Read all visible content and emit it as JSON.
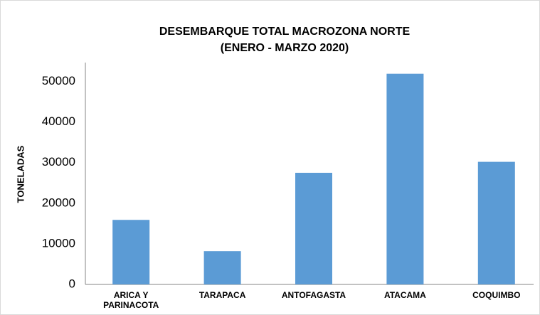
{
  "chart_data": {
    "type": "bar",
    "title": "DESEMBARQUE TOTAL MACROZONA NORTE",
    "subtitle": "(ENERO - MARZO 2020)",
    "y_label": "TONELADAS",
    "categories": [
      "ARICA Y PARINACOTA",
      "TARAPACA",
      "ANTOFAGASTA",
      "ATACAMA",
      "COQUIMBO"
    ],
    "values": [
      15900,
      8200,
      27500,
      51900,
      30200
    ],
    "color": "#5b9bd5",
    "ylim": [
      0,
      55000
    ],
    "yticks": [
      0,
      10000,
      20000,
      30000,
      40000,
      50000
    ],
    "grid": false
  }
}
